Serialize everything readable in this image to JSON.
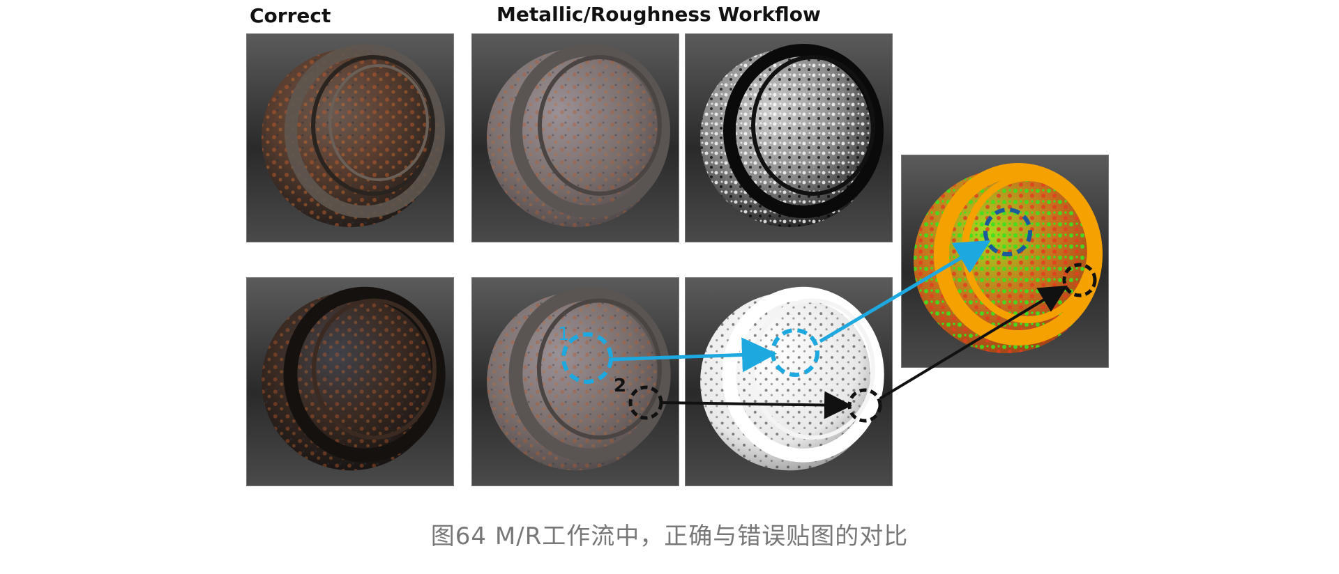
{
  "labels": {
    "correct": "Correct",
    "workflow": "Metallic/Roughness Workflow"
  },
  "markers": {
    "one": "1",
    "two": "2"
  },
  "caption": "图64 M/R工作流中，正确与错误贴图的对比",
  "colors": {
    "marker_one": "#1ea8e0",
    "marker_two": "#111111",
    "rust": "#b5572a",
    "metal": "#3f4a58",
    "validate_green": "#3de01e",
    "validate_red": "#e0401e",
    "validate_orange": "#f5a200"
  }
}
